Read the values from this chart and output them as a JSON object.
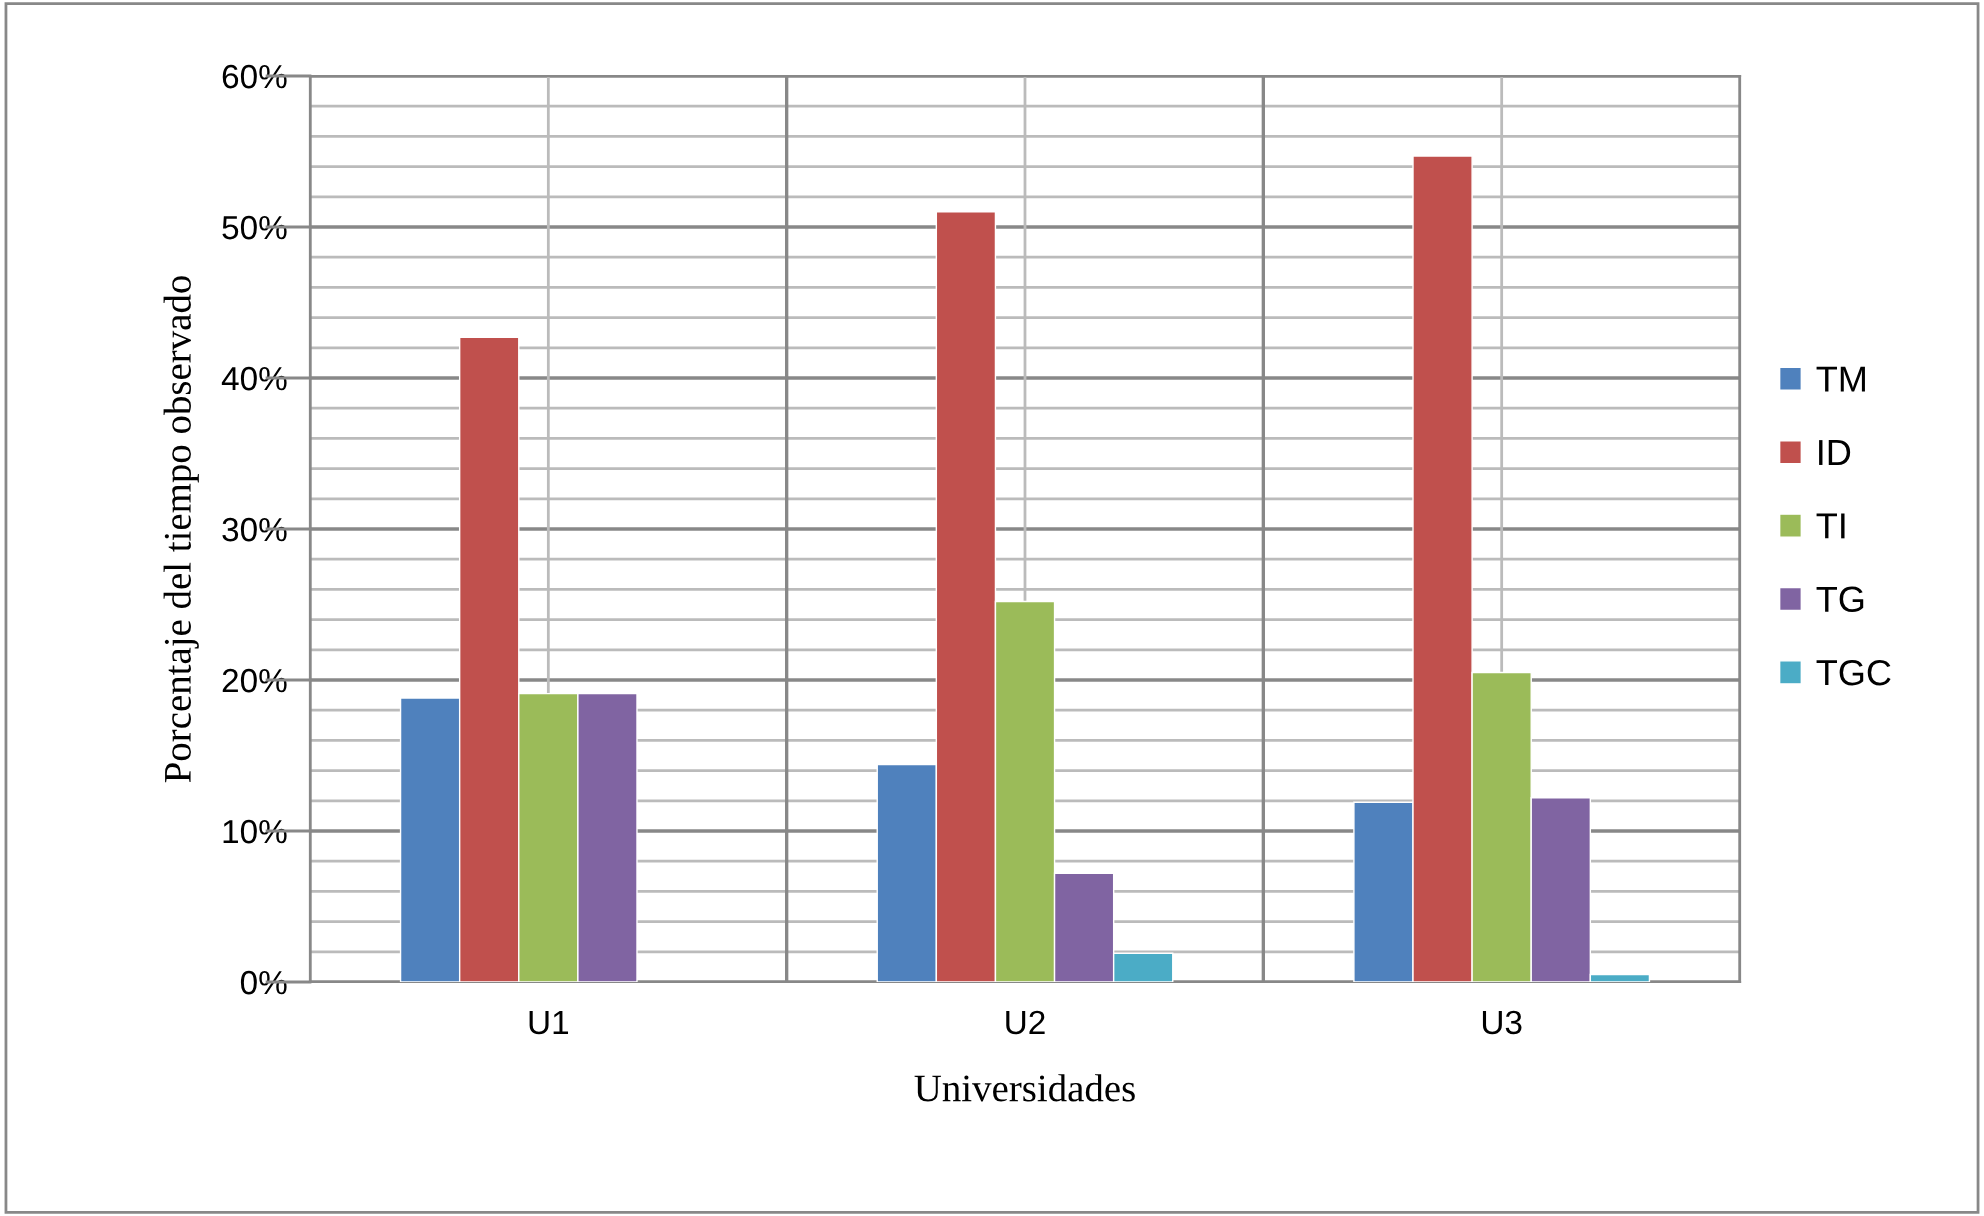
{
  "chart_data": {
    "type": "bar",
    "xlabel": "Universidades",
    "ylabel": "Porcentaje del tiempo observado",
    "categories": [
      "U1",
      "U2",
      "U3"
    ],
    "series": [
      {
        "name": "TM",
        "color": "#4f81bd",
        "values": [
          18.8,
          14.4,
          11.9
        ]
      },
      {
        "name": "ID",
        "color": "#c0504d",
        "values": [
          42.7,
          51.0,
          54.7
        ]
      },
      {
        "name": "TI",
        "color": "#9bbb59",
        "values": [
          19.1,
          25.2,
          20.5
        ]
      },
      {
        "name": "TG",
        "color": "#8064a2",
        "values": [
          19.1,
          7.2,
          12.2
        ]
      },
      {
        "name": "TGC",
        "color": "#4bacc6",
        "values": [
          null,
          1.9,
          0.5
        ]
      }
    ],
    "ylim": [
      0,
      60
    ],
    "yticks": [
      {
        "value": 0,
        "label": "0%"
      },
      {
        "value": 2,
        "label": null
      },
      {
        "value": 4,
        "label": null
      },
      {
        "value": 6,
        "label": null
      },
      {
        "value": 8,
        "label": null
      },
      {
        "value": 10,
        "label": "10%"
      },
      {
        "value": 12,
        "label": null
      },
      {
        "value": 14,
        "label": null
      },
      {
        "value": 16,
        "label": null
      },
      {
        "value": 18,
        "label": null
      },
      {
        "value": 20,
        "label": "20%"
      },
      {
        "value": 22,
        "label": null
      },
      {
        "value": 24,
        "label": null
      },
      {
        "value": 26,
        "label": null
      },
      {
        "value": 28,
        "label": null
      },
      {
        "value": 30,
        "label": "30%"
      },
      {
        "value": 32,
        "label": null
      },
      {
        "value": 34,
        "label": null
      },
      {
        "value": 36,
        "label": null
      },
      {
        "value": 38,
        "label": null
      },
      {
        "value": 40,
        "label": "40%"
      },
      {
        "value": 42,
        "label": null
      },
      {
        "value": 44,
        "label": null
      },
      {
        "value": 46,
        "label": null
      },
      {
        "value": 48,
        "label": null
      },
      {
        "value": 50,
        "label": "50%"
      },
      {
        "value": 52,
        "label": null
      },
      {
        "value": 54,
        "label": null
      },
      {
        "value": 56,
        "label": null
      },
      {
        "value": 58,
        "label": null
      },
      {
        "value": 60,
        "label": "60%"
      }
    ],
    "grid": true,
    "legend": "right"
  }
}
